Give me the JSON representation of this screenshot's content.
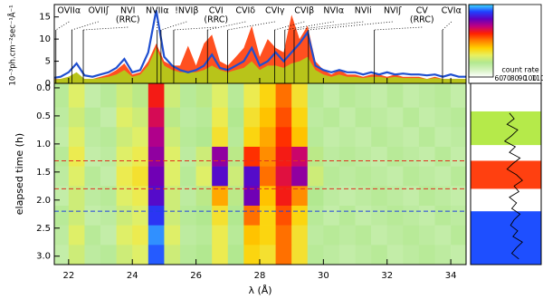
{
  "chart_data": [
    {
      "type": "line",
      "ylabel": "10⁻³ph.cm⁻²sec⁻¹Å⁻¹",
      "xlim": [
        21.55,
        34.48
      ],
      "ylim": [
        0,
        17.8
      ],
      "yticks": [
        0,
        5,
        10,
        15
      ],
      "x": [
        21.5,
        21.75,
        22.0,
        22.25,
        22.5,
        22.75,
        23.0,
        23.25,
        23.5,
        23.75,
        24.0,
        24.25,
        24.5,
        24.75,
        25.0,
        25.25,
        25.5,
        25.75,
        26.0,
        26.25,
        26.5,
        26.75,
        27.0,
        27.25,
        27.5,
        27.75,
        28.0,
        28.25,
        28.5,
        28.75,
        29.0,
        29.25,
        29.5,
        29.75,
        30.0,
        30.25,
        30.5,
        30.75,
        31.0,
        31.25,
        31.5,
        31.75,
        32.0,
        32.25,
        32.5,
        32.75,
        33.0,
        33.25,
        33.5,
        33.75,
        34.0,
        34.25,
        34.5
      ],
      "series": [
        {
          "kind": "area",
          "color": "#ff5020",
          "values": [
            1,
            1,
            1.5,
            2,
            1,
            1,
            1.5,
            2,
            3,
            4.5,
            2,
            2.5,
            5,
            9,
            5,
            4,
            4,
            8.5,
            4,
            9,
            11,
            5,
            4,
            6,
            8,
            13,
            6,
            10,
            8,
            7,
            15.5,
            10,
            13,
            5,
            3,
            2,
            3,
            2,
            2,
            1.5,
            2,
            2,
            1.5,
            2,
            1.5,
            1.5,
            1.5,
            1,
            1.5,
            1,
            1,
            1,
            1
          ]
        },
        {
          "kind": "area",
          "color": "#b8c41a",
          "values": [
            0.8,
            1,
            1.5,
            2.5,
            1,
            1,
            1.2,
            1.5,
            2,
            3,
            1.5,
            2,
            4,
            8,
            4,
            3,
            2.5,
            2.5,
            2.5,
            3,
            4,
            3,
            2.5,
            3,
            3.5,
            5,
            3,
            4,
            4,
            3.5,
            4.5,
            5,
            6,
            3,
            2,
            1.5,
            2,
            1.5,
            1.5,
            1.2,
            1.5,
            1.5,
            1.2,
            1.5,
            1.2,
            1.2,
            1.2,
            1,
            1.2,
            1,
            1,
            1,
            1
          ]
        },
        {
          "kind": "line",
          "color": "#1f4fd0",
          "values": [
            1.2,
            1.5,
            2.5,
            4.5,
            1.8,
            1.5,
            2,
            2.5,
            3.5,
            5.5,
            2.5,
            3,
            7,
            16.5,
            6,
            4,
            3,
            2.5,
            3,
            4,
            6.5,
            3.5,
            3,
            4,
            5,
            8,
            4,
            5,
            7,
            5,
            7,
            9,
            11.5,
            4,
            3,
            2.5,
            3,
            2.5,
            2.5,
            2,
            2.5,
            2,
            2.5,
            2,
            2.2,
            2,
            2,
            1.8,
            2,
            1.5,
            2,
            1.5,
            1.5
          ]
        }
      ],
      "annotations": [
        {
          "lines": [
            "OVIIα"
          ],
          "x": 21.6,
          "color": "#2a8fd8"
        },
        {
          "lines": [
            "OVIIʃ"
          ],
          "x": 22.1,
          "color": "#2a8fd8"
        },
        {
          "lines": [
            "NVI",
            "(RRC)"
          ],
          "x": 22.46,
          "color": "#f07020"
        },
        {
          "lines": [
            "NVIIα"
          ],
          "x": 24.78,
          "color": "#000000"
        },
        {
          "lines": [
            "!NVIβ"
          ],
          "x": 24.9,
          "color": "#000000"
        },
        {
          "lines": [
            "CVI",
            "(RRC)"
          ],
          "x": 25.3,
          "color": "#f07020"
        },
        {
          "lines": [
            "CVIδ"
          ],
          "x": 26.36,
          "color": "#20b0e0"
        },
        {
          "lines": [
            "CVIγ"
          ],
          "x": 26.99,
          "color": "#20b0e0"
        },
        {
          "lines": [
            "CVIβ"
          ],
          "x": 28.47,
          "color": "#20b0e0"
        },
        {
          "lines": [
            "NVIα"
          ],
          "x": 28.79,
          "color": "#000000"
        },
        {
          "lines": [
            "NVIi"
          ],
          "x": 29.08,
          "color": "#000000"
        },
        {
          "lines": [
            "NVIʃ"
          ],
          "x": 29.53,
          "color": "#000000"
        },
        {
          "lines": [
            "CV",
            "(RRC)"
          ],
          "x": 31.6,
          "color": "#f07020"
        },
        {
          "lines": [
            "CVIα"
          ],
          "x": 33.74,
          "color": "#20b0e0"
        }
      ]
    },
    {
      "type": "heatmap",
      "xlabel": "λ (Å)",
      "ylabel": "elapsed time (h)",
      "xlim": [
        21.55,
        34.48
      ],
      "ylim": [
        -0.08,
        3.15
      ],
      "xticks": [
        22,
        24,
        26,
        28,
        30,
        32,
        34
      ],
      "yticks": [
        {
          "value": 0,
          "label": "0.0"
        },
        {
          "value": 0.5,
          "label": "0.5"
        },
        {
          "value": 1,
          "label": "1.0"
        },
        {
          "value": 1.5,
          "label": "1.5"
        },
        {
          "value": 2,
          "label": "2.0"
        },
        {
          "value": 2.5,
          "label": "2.5"
        },
        {
          "value": 3,
          "label": "3.0"
        }
      ],
      "x_edges": [
        21.5,
        22.0,
        22.5,
        23.0,
        23.5,
        24.0,
        24.5,
        25.0,
        25.5,
        26.0,
        26.5,
        27.0,
        27.5,
        28.0,
        28.5,
        29.0,
        29.5,
        30.0,
        30.5,
        31.0,
        31.5,
        32.0,
        32.5,
        33.0,
        33.5,
        34.0,
        34.5
      ],
      "y_edges": [
        -0.08,
        0.35,
        0.7,
        1.05,
        1.4,
        1.75,
        2.1,
        2.45,
        2.8,
        3.15
      ],
      "values": [
        [
          66,
          72,
          64,
          66,
          70,
          68,
          92,
          70,
          66,
          68,
          72,
          66,
          74,
          78,
          86,
          76,
          66,
          64,
          66,
          65,
          64,
          66,
          64,
          65,
          66,
          64
        ],
        [
          65,
          70,
          66,
          64,
          72,
          70,
          95,
          68,
          65,
          66,
          74,
          67,
          76,
          80,
          88,
          78,
          65,
          66,
          64,
          66,
          65,
          64,
          66,
          64,
          65,
          66
        ],
        [
          64,
          72,
          65,
          66,
          70,
          72,
          98,
          70,
          66,
          67,
          76,
          66,
          78,
          82,
          90,
          80,
          66,
          64,
          65,
          64,
          66,
          65,
          64,
          66,
          64,
          65
        ],
        [
          66,
          74,
          64,
          65,
          72,
          74,
          100,
          72,
          65,
          70,
          100,
          68,
          90,
          84,
          92,
          96,
          68,
          65,
          66,
          65,
          64,
          66,
          65,
          64,
          66,
          64
        ],
        [
          65,
          72,
          66,
          64,
          74,
          76,
          102,
          72,
          66,
          72,
          104,
          70,
          104,
          86,
          94,
          100,
          70,
          66,
          65,
          66,
          65,
          64,
          66,
          65,
          64,
          66
        ],
        [
          64,
          70,
          65,
          66,
          72,
          74,
          104,
          70,
          65,
          68,
          82,
          68,
          102,
          80,
          92,
          84,
          67,
          65,
          64,
          65,
          66,
          65,
          64,
          66,
          65,
          64
        ],
        [
          66,
          70,
          64,
          65,
          70,
          72,
          108,
          70,
          66,
          67,
          76,
          67,
          86,
          78,
          88,
          78,
          66,
          64,
          66,
          64,
          65,
          66,
          65,
          64,
          66,
          65
        ],
        [
          65,
          72,
          66,
          64,
          72,
          74,
          112,
          72,
          65,
          66,
          74,
          66,
          80,
          78,
          86,
          76,
          65,
          66,
          65,
          66,
          64,
          65,
          66,
          65,
          64,
          66
        ],
        [
          64,
          70,
          65,
          66,
          70,
          72,
          110,
          70,
          66,
          67,
          74,
          67,
          78,
          76,
          86,
          76,
          66,
          65,
          64,
          65,
          66,
          64,
          65,
          66,
          65,
          64
        ]
      ],
      "hlines": [
        {
          "value": 1.3,
          "color": "#e03020"
        },
        {
          "value": 1.8,
          "color": "#e03020"
        },
        {
          "value": 2.2,
          "color": "#2040e0"
        }
      ]
    },
    {
      "type": "colorbar",
      "label": "count rate",
      "lim": [
        55,
        115
      ],
      "ticks": [
        60,
        70,
        80,
        90,
        100,
        110
      ],
      "colormap": [
        "#ffffff",
        "#d4f2c0",
        "#b2e890",
        "#e8f060",
        "#ffd000",
        "#ff8000",
        "#ff2000",
        "#c00080",
        "#6000c0",
        "#2040ff",
        "#40e0ff"
      ]
    },
    {
      "type": "profile",
      "xlim": [
        55,
        115
      ],
      "ylim": [
        -0.08,
        3.15
      ],
      "time": [
        0.45,
        0.55,
        0.65,
        0.75,
        0.85,
        0.95,
        1.05,
        1.15,
        1.25,
        1.35,
        1.45,
        1.55,
        1.65,
        1.75,
        1.85,
        1.95,
        2.05,
        2.15,
        2.25,
        2.35,
        2.45,
        2.55,
        2.65,
        2.75,
        2.85,
        2.95,
        3.05
      ],
      "values": [
        88,
        92,
        86,
        95,
        90,
        84,
        93,
        88,
        97,
        91,
        86,
        94,
        99,
        92,
        96,
        88,
        94,
        90,
        97,
        92,
        89,
        95,
        91,
        99,
        94,
        90,
        96
      ],
      "bands": [
        {
          "from": 0.42,
          "to": 1.02,
          "color": "#b5ea4a"
        },
        {
          "from": 1.3,
          "to": 1.8,
          "color": "#ff4010"
        },
        {
          "from": 2.2,
          "to": 3.15,
          "color": "#1e4fff"
        }
      ]
    }
  ]
}
